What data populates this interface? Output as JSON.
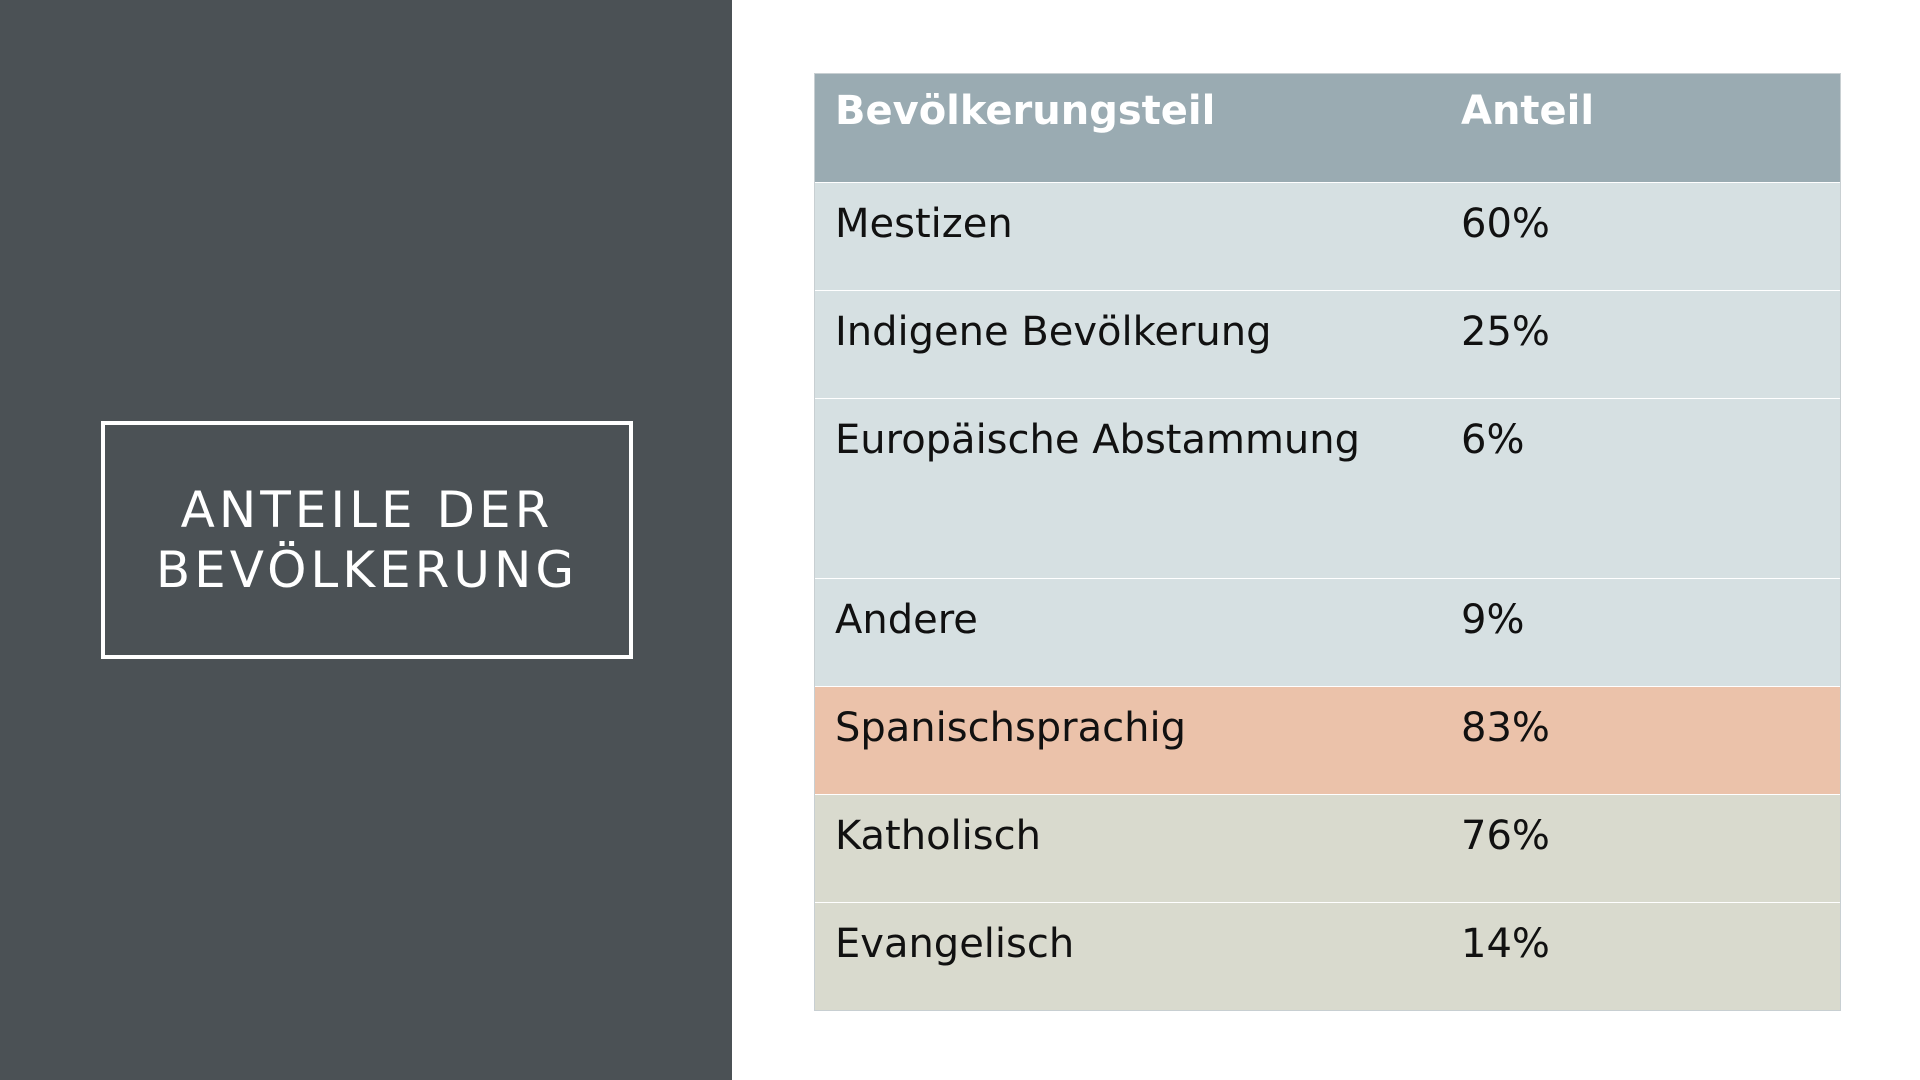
{
  "title": {
    "line1": "ANTEILE DER",
    "line2": "BEVÖLKERUNG"
  },
  "table": {
    "headers": [
      "Bevölkerungsteil",
      "Anteil"
    ],
    "rows": [
      {
        "label": "Mestizen",
        "value": "60%",
        "group": "ethnic"
      },
      {
        "label": "Indigene Bevölkerung",
        "value": "25%",
        "group": "ethnic"
      },
      {
        "label": "Europäische Abstammung",
        "value": "6%",
        "group": "ethnic"
      },
      {
        "label": "Andere",
        "value": "9%",
        "group": "ethnic"
      },
      {
        "label": "Spanischsprachig",
        "value": "83%",
        "group": "language"
      },
      {
        "label": "Katholisch",
        "value": "76%",
        "group": "religion"
      },
      {
        "label": "Evangelisch",
        "value": "14%",
        "group": "religion"
      }
    ]
  },
  "colors": {
    "left_panel": "#4b5155",
    "header": "#9aabb2",
    "ethnic_rows": "#d6e0e2",
    "language_row": "#ebc2aa",
    "religion_rows": "#d9dace"
  }
}
